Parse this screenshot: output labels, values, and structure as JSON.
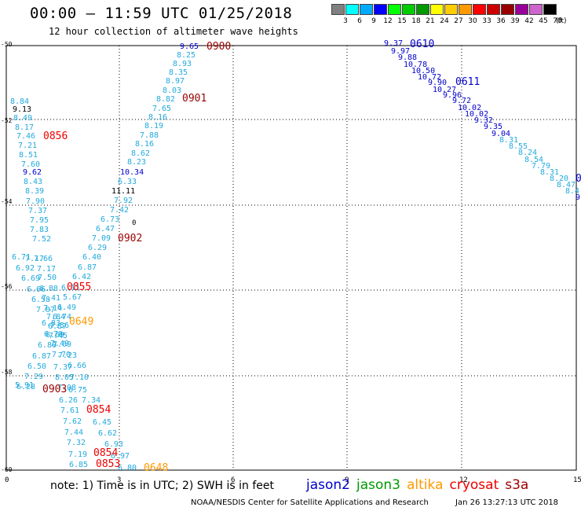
{
  "header": {
    "title": "00:00 – 11:59 UTC 01/25/2018",
    "subtitle": "12 hour collection of altimeter wave heights"
  },
  "colorbar": {
    "unit": "(ft)",
    "bins": [
      {
        "label": "3",
        "color": "#808080"
      },
      {
        "label": "6",
        "color": "#00ffff"
      },
      {
        "label": "9",
        "color": "#00aaff"
      },
      {
        "label": "12",
        "color": "#0000ff"
      },
      {
        "label": "15",
        "color": "#00ff00"
      },
      {
        "label": "18",
        "color": "#00cc00"
      },
      {
        "label": "21",
        "color": "#009900"
      },
      {
        "label": "24",
        "color": "#ffff00"
      },
      {
        "label": "27",
        "color": "#ffcc00"
      },
      {
        "label": "30",
        "color": "#ff9900"
      },
      {
        "label": "33",
        "color": "#ff0000"
      },
      {
        "label": "36",
        "color": "#cc0000"
      },
      {
        "label": "39",
        "color": "#990000"
      },
      {
        "label": "42",
        "color": "#990099"
      },
      {
        "label": "45",
        "color": "#cc66cc"
      },
      {
        "label": "70",
        "color": "#000000"
      }
    ]
  },
  "map": {
    "lat_labels": [
      "-50",
      "-52",
      "-54",
      "-56",
      "-58",
      "-60"
    ],
    "lon_labels": [
      "0",
      "3",
      "6",
      "9",
      "12",
      "15"
    ],
    "colors": {
      "cyan": "#22aadd",
      "blue": "#0000cc",
      "black": "#000000",
      "darkred": "#990000",
      "red": "#ee0000",
      "orange": "#ff9900"
    },
    "track1": [
      {
        "v": "9.65",
        "c": "blue"
      },
      {
        "v": "8.25",
        "c": "cyan"
      },
      {
        "v": "8.93",
        "c": "cyan"
      },
      {
        "v": "8.35",
        "c": "cyan"
      },
      {
        "v": "8.97",
        "c": "cyan"
      },
      {
        "v": "8.03",
        "c": "cyan"
      },
      {
        "v": "8.82",
        "c": "cyan"
      },
      {
        "v": "7.65",
        "c": "cyan"
      },
      {
        "v": "8.16",
        "c": "cyan"
      },
      {
        "v": "8.19",
        "c": "cyan"
      },
      {
        "v": "7.88",
        "c": "cyan"
      },
      {
        "v": "8.16",
        "c": "cyan"
      },
      {
        "v": "8.62",
        "c": "cyan"
      },
      {
        "v": "8.23",
        "c": "cyan"
      },
      {
        "v": "10.34",
        "c": "blue"
      },
      {
        "v": "6.33",
        "c": "cyan"
      },
      {
        "v": "11.11",
        "c": "black"
      },
      {
        "v": "7.92",
        "c": "cyan"
      },
      {
        "v": "7.42",
        "c": "cyan"
      },
      {
        "v": "6.73",
        "c": "cyan"
      },
      {
        "v": "6.47",
        "c": "cyan"
      },
      {
        "v": "7.09",
        "c": "cyan"
      },
      {
        "v": "6.29",
        "c": "cyan"
      },
      {
        "v": "6.40",
        "c": "cyan"
      },
      {
        "v": "6.87",
        "c": "cyan"
      },
      {
        "v": "6.42",
        "c": "cyan"
      },
      {
        "v": "6.11",
        "c": "cyan"
      },
      {
        "v": "5.67",
        "c": "cyan"
      },
      {
        "v": "6.49",
        "c": "cyan"
      },
      {
        "v": "6.74",
        "c": "cyan"
      },
      {
        "v": "7.56",
        "c": "cyan"
      },
      {
        "v": "6.69",
        "c": "cyan"
      },
      {
        "v": "7.09",
        "c": "cyan"
      },
      {
        "v": "7.23",
        "c": "cyan"
      },
      {
        "v": "6.66",
        "c": "cyan"
      },
      {
        "v": "7.10",
        "c": "cyan"
      },
      {
        "v": "6.75",
        "c": "cyan"
      },
      {
        "v": "7.34",
        "c": "cyan"
      },
      {
        "v": "6.45",
        "c": "cyan"
      },
      {
        "v": "6.62",
        "c": "cyan"
      },
      {
        "v": "6.93",
        "c": "cyan"
      },
      {
        "v": "6.97",
        "c": "cyan"
      },
      {
        "v": "6.80",
        "c": "cyan"
      }
    ],
    "track2": [
      {
        "v": "8.84",
        "c": "cyan"
      },
      {
        "v": "9.13",
        "c": "black"
      },
      {
        "v": "8.49",
        "c": "cyan"
      },
      {
        "v": "8.17",
        "c": "cyan"
      },
      {
        "v": "7.46",
        "c": "cyan"
      },
      {
        "v": "7.21",
        "c": "cyan"
      },
      {
        "v": "8.51",
        "c": "cyan"
      },
      {
        "v": "7.60",
        "c": "cyan"
      },
      {
        "v": "9.62",
        "c": "blue"
      },
      {
        "v": "8.43",
        "c": "cyan"
      },
      {
        "v": "8.39",
        "c": "cyan"
      },
      {
        "v": "7.90",
        "c": "cyan"
      },
      {
        "v": "7.37",
        "c": "cyan"
      },
      {
        "v": "7.95",
        "c": "cyan"
      },
      {
        "v": "7.83",
        "c": "cyan"
      },
      {
        "v": "7.52",
        "c": "cyan"
      },
      {
        "v": "7.66",
        "c": "cyan"
      },
      {
        "v": "7.17",
        "c": "cyan"
      },
      {
        "v": "7.50",
        "c": "cyan"
      },
      {
        "v": "6.88",
        "c": "cyan"
      },
      {
        "v": "7.41",
        "c": "cyan"
      },
      {
        "v": "7.14",
        "c": "cyan"
      },
      {
        "v": "7.84",
        "c": "cyan"
      },
      {
        "v": "6.87",
        "c": "cyan"
      },
      {
        "v": "7.45",
        "c": "cyan"
      },
      {
        "v": "7.49",
        "c": "cyan"
      },
      {
        "v": "7.70",
        "c": "cyan"
      },
      {
        "v": "7.37",
        "c": "cyan"
      },
      {
        "v": "8.05",
        "c": "cyan"
      },
      {
        "v": "7.08",
        "c": "cyan"
      },
      {
        "v": "6.26",
        "c": "cyan"
      },
      {
        "v": "7.61",
        "c": "cyan"
      },
      {
        "v": "7.62",
        "c": "cyan"
      },
      {
        "v": "7.44",
        "c": "cyan"
      },
      {
        "v": "7.32",
        "c": "cyan"
      },
      {
        "v": "7.19",
        "c": "cyan"
      },
      {
        "v": "6.85",
        "c": "cyan"
      },
      {
        "v": "7.17",
        "c": "cyan"
      }
    ],
    "track3": [
      {
        "v": "6.71",
        "c": "cyan"
      },
      {
        "v": "6.92",
        "c": "cyan"
      },
      {
        "v": "6.69",
        "c": "cyan"
      },
      {
        "v": "6.66",
        "c": "cyan"
      },
      {
        "v": "6.58",
        "c": "cyan"
      },
      {
        "v": "7.07",
        "c": "cyan"
      },
      {
        "v": "6.83",
        "c": "cyan"
      },
      {
        "v": "6.70",
        "c": "cyan"
      },
      {
        "v": "6.80",
        "c": "cyan"
      },
      {
        "v": "6.87",
        "c": "cyan"
      },
      {
        "v": "6.50",
        "c": "cyan"
      },
      {
        "v": "7.29",
        "c": "cyan"
      },
      {
        "v": "6.28",
        "c": "cyan"
      },
      {
        "v": "5.91",
        "c": "cyan"
      }
    ],
    "track_right": [
      {
        "v": "9.37",
        "c": "blue"
      },
      {
        "v": "9.97",
        "c": "blue"
      },
      {
        "v": "9.88",
        "c": "blue"
      },
      {
        "v": "10.78",
        "c": "blue"
      },
      {
        "v": "10.50",
        "c": "blue"
      },
      {
        "v": "10.72",
        "c": "blue"
      },
      {
        "v": "9.90",
        "c": "blue"
      },
      {
        "v": "10.27",
        "c": "blue"
      },
      {
        "v": "9.96",
        "c": "blue"
      },
      {
        "v": "9.72",
        "c": "blue"
      },
      {
        "v": "10.02",
        "c": "blue"
      },
      {
        "v": "10.02",
        "c": "blue"
      },
      {
        "v": "9.32",
        "c": "blue"
      },
      {
        "v": "9.35",
        "c": "blue"
      },
      {
        "v": "9.04",
        "c": "blue"
      },
      {
        "v": "8.31",
        "c": "cyan"
      },
      {
        "v": "8.55",
        "c": "cyan"
      },
      {
        "v": "8.24",
        "c": "cyan"
      },
      {
        "v": "8.54",
        "c": "cyan"
      },
      {
        "v": "7.79",
        "c": "cyan"
      },
      {
        "v": "8.31",
        "c": "cyan"
      },
      {
        "v": "8.20",
        "c": "cyan"
      },
      {
        "v": "8.47",
        "c": "cyan"
      },
      {
        "v": "8.4",
        "c": "cyan"
      },
      {
        "v": "9",
        "c": "blue"
      }
    ],
    "time_tags": [
      {
        "t": "0900",
        "c": "darkred"
      },
      {
        "t": "0901",
        "c": "darkred"
      },
      {
        "t": "0902",
        "c": "darkred"
      },
      {
        "t": "0856",
        "c": "red"
      },
      {
        "t": "0855",
        "c": "red"
      },
      {
        "t": "0649",
        "c": "orange"
      },
      {
        "t": "0903",
        "c": "darkred"
      },
      {
        "t": "0854",
        "c": "red"
      },
      {
        "t": "0854",
        "c": "red"
      },
      {
        "t": "0853",
        "c": "red"
      },
      {
        "t": "0648",
        "c": "orange"
      },
      {
        "t": "0610",
        "c": "blue"
      },
      {
        "t": "0611",
        "c": "blue"
      },
      {
        "t": "0",
        "c": "blue"
      }
    ],
    "small_label": "0"
  },
  "footer": {
    "note": "note: 1) Time is in UTC; 2) SWH is in feet",
    "legend": [
      {
        "name": "jason2",
        "color": "#0000cc"
      },
      {
        "name": "jason3",
        "color": "#009900"
      },
      {
        "name": "altika",
        "color": "#ff9900"
      },
      {
        "name": "cryosat",
        "color": "#ee0000"
      },
      {
        "name": "s3a",
        "color": "#990000"
      }
    ],
    "credit": "NOAA/NESDIS Center for Satellite Applications and Research",
    "stamp": "Jan 26 13:27:13 UTC 2018"
  }
}
